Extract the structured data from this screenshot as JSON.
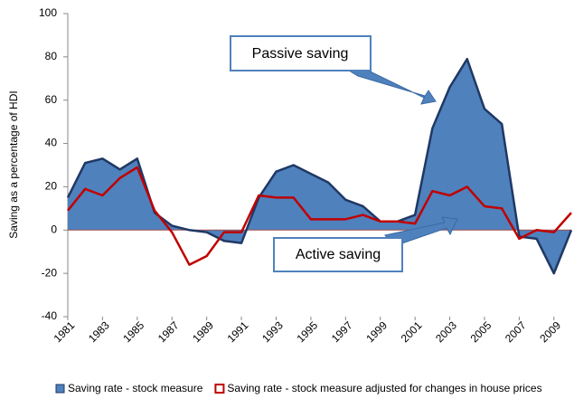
{
  "chart_data": {
    "type": "area",
    "y_label": "Saving as a percentage of HDI",
    "x": [
      1981,
      1982,
      1983,
      1984,
      1985,
      1986,
      1987,
      1988,
      1989,
      1990,
      1991,
      1992,
      1993,
      1994,
      1995,
      1996,
      1997,
      1998,
      1999,
      2000,
      2001,
      2002,
      2003,
      2004,
      2005,
      2006,
      2007,
      2008,
      2009,
      2010
    ],
    "series": [
      {
        "name": "Saving rate - stock measure",
        "color": "#4f81bd",
        "line_color": "#1f3864",
        "values": [
          15,
          31,
          33,
          28,
          33,
          8,
          2,
          0,
          -1,
          -5,
          -6,
          15,
          27,
          30,
          26,
          22,
          14,
          11,
          4,
          4,
          7,
          47,
          66,
          79,
          56,
          49,
          -3,
          -4,
          -20,
          0
        ]
      },
      {
        "name": "Saving rate - stock measure adjusted for changes in house prices",
        "color": "#c00000",
        "values": [
          9,
          19,
          16,
          24,
          29,
          9,
          -1,
          -16,
          -12,
          -1,
          -1,
          16,
          15,
          15,
          5,
          5,
          5,
          7,
          4,
          4,
          3,
          18,
          16,
          20,
          11,
          10,
          -4,
          0,
          -1,
          8
        ]
      }
    ],
    "xlim": [
      1981,
      2010
    ],
    "xticks": [
      1981,
      1983,
      1985,
      1987,
      1989,
      1991,
      1993,
      1995,
      1997,
      1999,
      2001,
      2003,
      2005,
      2007,
      2009
    ],
    "ylim": [
      -40,
      100
    ],
    "yticks": [
      -40,
      -20,
      0,
      20,
      40,
      60,
      80,
      100
    ],
    "grid": false,
    "annotations": [
      "Passive saving",
      "Active saving"
    ]
  }
}
